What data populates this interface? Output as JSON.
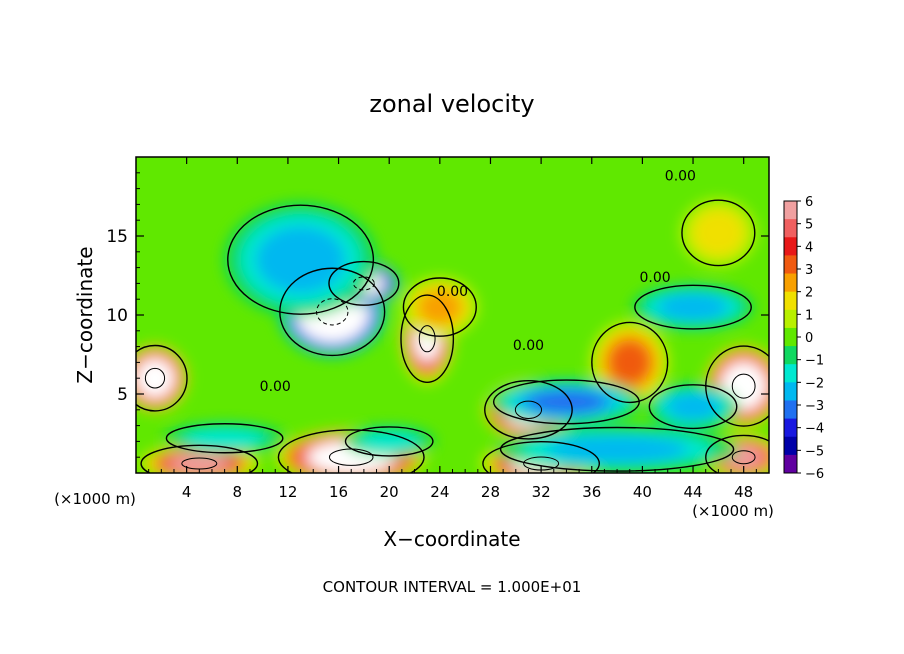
{
  "chart_data": {
    "type": "heatmap",
    "title": "zonal velocity",
    "xlabel": "X−coordinate",
    "ylabel": "Z−coordinate",
    "x_unit_left": "(×1000 m)",
    "x_unit_right": "(×1000 m)",
    "footer": "CONTOUR INTERVAL = 1.000E+01",
    "xlim": [
      0,
      50
    ],
    "ylim": [
      0,
      20
    ],
    "x_ticks": [
      4,
      8,
      12,
      16,
      20,
      24,
      28,
      32,
      36,
      40,
      44,
      48
    ],
    "x_tick_labels": [
      "4",
      "8",
      "12",
      "16",
      "20",
      "24",
      "28",
      "32",
      "36",
      "40",
      "44",
      "48"
    ],
    "y_ticks": [
      5,
      10,
      15
    ],
    "y_tick_labels": [
      "5",
      "10",
      "15"
    ],
    "colorbar": {
      "min": -6,
      "max": 6,
      "labels": [
        "6",
        "5",
        "4",
        "3",
        "2",
        "1",
        "0",
        "−1",
        "−2",
        "−3",
        "−4",
        "−5",
        "−6"
      ],
      "colors": [
        "#f0a0a0",
        "#f06060",
        "#e81818",
        "#f05a10",
        "#f8a000",
        "#f0e000",
        "#b8f000",
        "#60e800",
        "#10d860",
        "#00e8d0",
        "#00b8f0",
        "#2070f0",
        "#1818e0",
        "#0000a8",
        "#6000a0"
      ]
    },
    "contour_labels": [
      "0.00",
      "0.00",
      "0.00",
      "0.00",
      "0.00"
    ],
    "features": [
      {
        "kind": "blob",
        "x": 15.5,
        "y": 10.2,
        "rx": 3.6,
        "ry": 2.4,
        "value": -12
      },
      {
        "kind": "blob",
        "x": 18.0,
        "y": 12.0,
        "rx": 2.4,
        "ry": 1.2,
        "value": -10
      },
      {
        "kind": "blob",
        "x": 13.0,
        "y": 13.5,
        "rx": 5.0,
        "ry": 3.0,
        "value": -3
      },
      {
        "kind": "blob",
        "x": 23.0,
        "y": 8.5,
        "rx": 1.8,
        "ry": 2.4,
        "value": 8
      },
      {
        "kind": "blob",
        "x": 31.0,
        "y": 4.0,
        "rx": 3.0,
        "ry": 1.6,
        "value": 10
      },
      {
        "kind": "blob",
        "x": 1.5,
        "y": 6.0,
        "rx": 2.2,
        "ry": 1.8,
        "value": 9
      },
      {
        "kind": "blob",
        "x": 48.0,
        "y": 5.5,
        "rx": 2.6,
        "ry": 2.2,
        "value": 9
      },
      {
        "kind": "blob",
        "x": 17.0,
        "y": 1.0,
        "rx": 5.0,
        "ry": 1.5,
        "value": 9
      },
      {
        "kind": "blob",
        "x": 32.0,
        "y": 0.6,
        "rx": 4.0,
        "ry": 1.2,
        "value": 8
      },
      {
        "kind": "blob",
        "x": 5.0,
        "y": 0.6,
        "rx": 4.0,
        "ry": 1.0,
        "value": 7
      },
      {
        "kind": "blob",
        "x": 48.0,
        "y": 1.0,
        "rx": 2.6,
        "ry": 1.2,
        "value": 7
      },
      {
        "kind": "blob",
        "x": 24.0,
        "y": 10.5,
        "rx": 2.5,
        "ry": 1.6,
        "value": 3
      },
      {
        "kind": "blob",
        "x": 39.0,
        "y": 7.0,
        "rx": 2.6,
        "ry": 2.2,
        "value": 4
      },
      {
        "kind": "blob",
        "x": 46.0,
        "y": 15.2,
        "rx": 2.5,
        "ry": 1.8,
        "value": 2
      },
      {
        "kind": "blob",
        "x": 34.0,
        "y": 4.5,
        "rx": 5.0,
        "ry": 1.2,
        "value": -4
      },
      {
        "kind": "blob",
        "x": 44.0,
        "y": 10.5,
        "rx": 4.0,
        "ry": 1.2,
        "value": -3
      },
      {
        "kind": "blob",
        "x": 38.0,
        "y": 1.5,
        "rx": 8.0,
        "ry": 1.2,
        "value": -3
      },
      {
        "kind": "blob",
        "x": 20.0,
        "y": 2.0,
        "rx": 3.0,
        "ry": 0.8,
        "value": -2
      },
      {
        "kind": "blob",
        "x": 7.0,
        "y": 2.2,
        "rx": 4.0,
        "ry": 0.8,
        "value": -2
      },
      {
        "kind": "blob",
        "x": 44.0,
        "y": 4.2,
        "rx": 3.0,
        "ry": 1.2,
        "value": -3
      }
    ]
  }
}
